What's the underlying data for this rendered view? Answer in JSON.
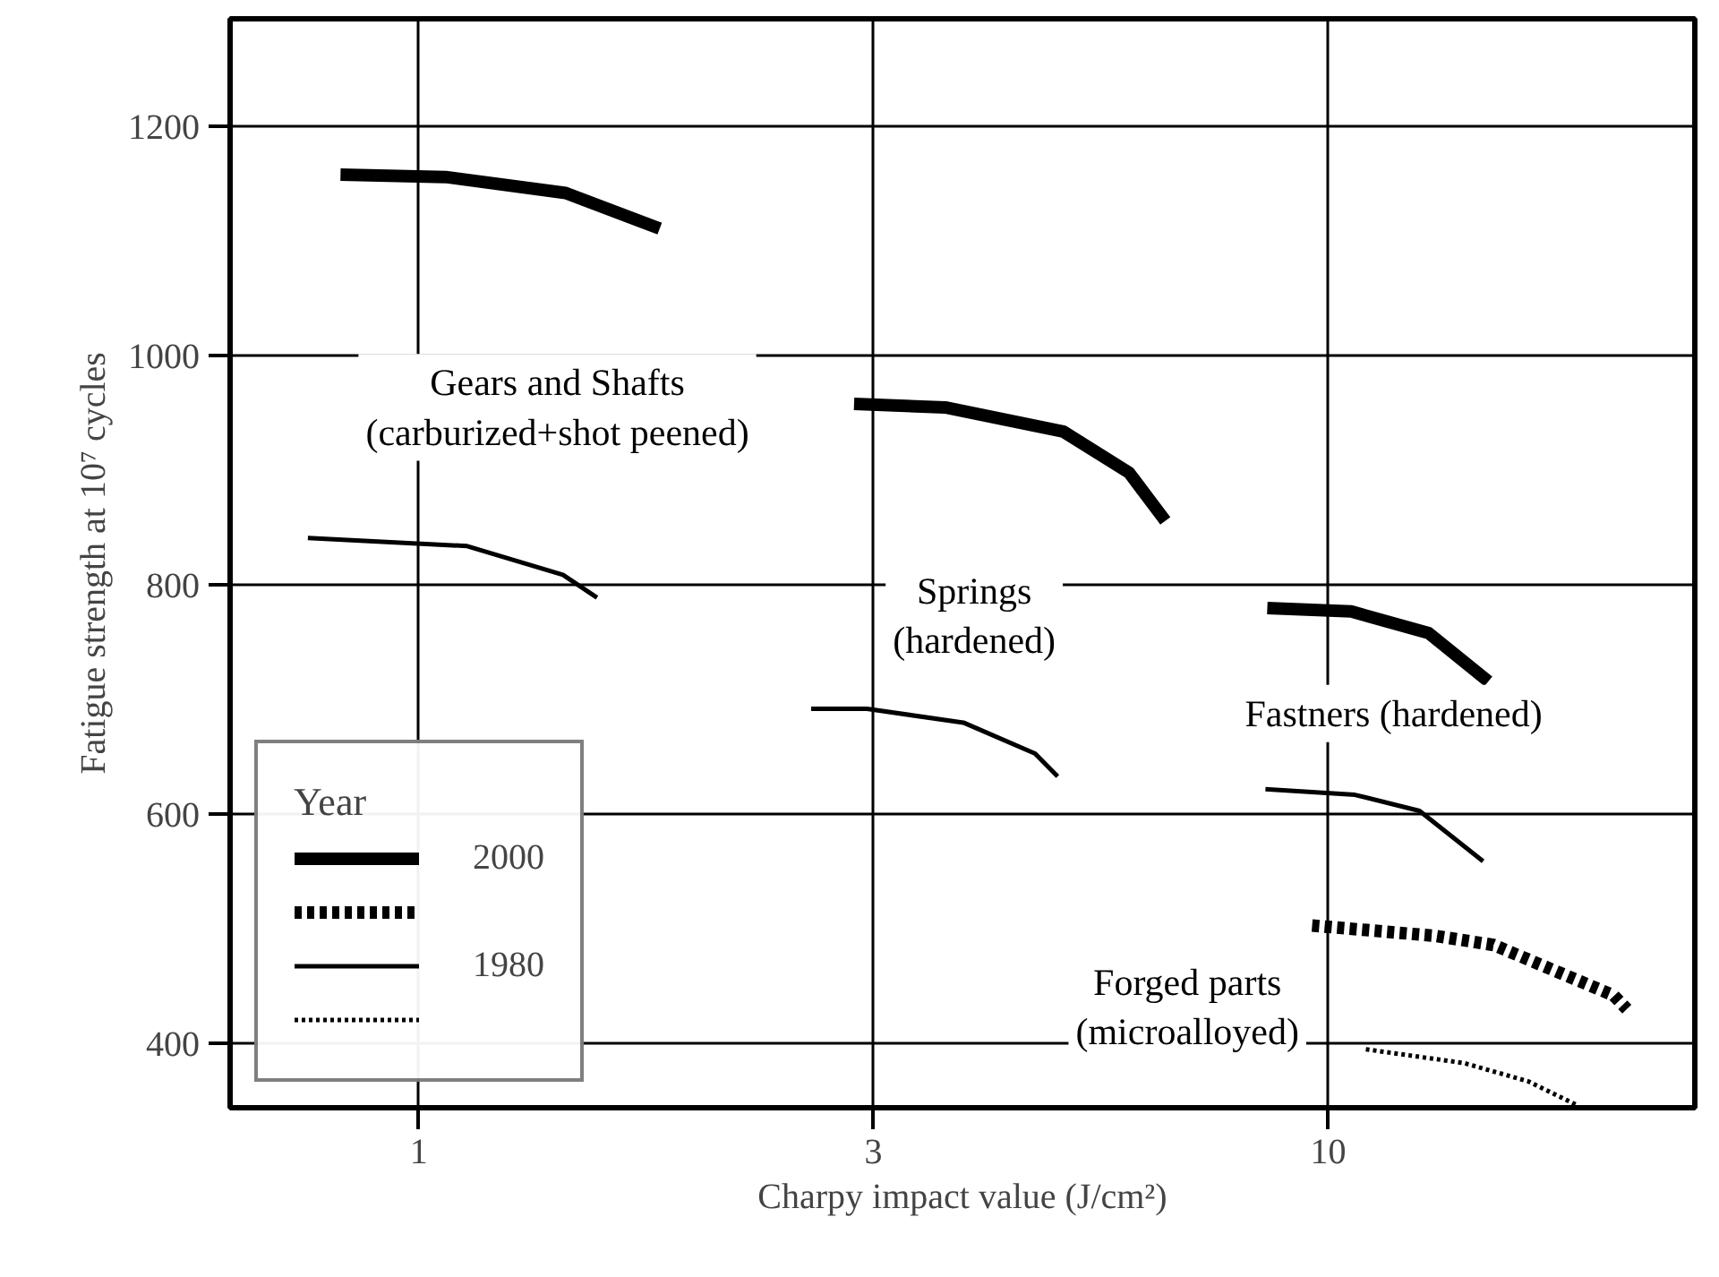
{
  "chart_data": {
    "type": "line",
    "xlabel": "Charpy impact value (J/cm²)",
    "ylabel": "Fatigue strength at 10⁷ cycles",
    "legend_title": "Year",
    "legend": "bottom left",
    "log": "x",
    "grid": true,
    "xlim": [
      0.62,
      25.3
    ],
    "xticks": [
      1,
      {
        "value": 3.16,
        "label": "3"
      },
      10
    ],
    "ylim": [
      344,
      1294
    ],
    "yticks": [
      400,
      600,
      800,
      1000,
      1200
    ],
    "series": [
      {
        "name": "2000",
        "color": "#000000",
        "line_style": "solid",
        "x": [
          0.82,
          1.07,
          1.45,
          1.84
        ],
        "values": [
          1158,
          1156,
          1142,
          1111
        ]
      },
      {
        "name": "1980",
        "color": "#000000",
        "line_style": "solid",
        "x": [
          0.755,
          1.13,
          1.44,
          1.57
        ],
        "values": [
          841,
          834,
          809,
          789
        ]
      },
      {
        "color": "#000000",
        "line_style": "solid",
        "x": [
          3.01,
          3.79,
          5.11,
          6.04,
          6.62
        ],
        "values": [
          958,
          955,
          934,
          898,
          856
        ]
      },
      {
        "color": "#000000",
        "line_style": "solid",
        "x": [
          2.7,
          3.11,
          3.97,
          4.76,
          5.04
        ],
        "values": [
          692,
          692,
          680,
          653,
          633
        ]
      },
      {
        "color": "#000000",
        "line_style": "solid",
        "x": [
          8.57,
          10.6,
          12.9,
          15.0
        ],
        "values": [
          780,
          777,
          758,
          716
        ]
      },
      {
        "color": "#000000",
        "line_style": "solid",
        "x": [
          8.53,
          10.7,
          12.6,
          14.8
        ],
        "values": [
          622,
          617,
          603,
          559
        ]
      },
      {
        "color": "#000000",
        "line_style": "dashed",
        "x": [
          9.6,
          13.1,
          15.2,
          20.6,
          21.3
        ],
        "values": [
          503,
          494,
          486,
          442,
          430
        ]
      },
      {
        "color": "#000000",
        "line_style": "dotted",
        "x": [
          11.0,
          14.1,
          16.6,
          18.8
        ],
        "values": [
          395,
          383,
          367,
          346
        ]
      }
    ],
    "annotations": [
      "Gears and Shafts\n(carburized+shot peened)",
      "Springs\n(hardened)",
      "Fastners (hardened)",
      "Forged parts\n(microalloyed)"
    ]
  }
}
